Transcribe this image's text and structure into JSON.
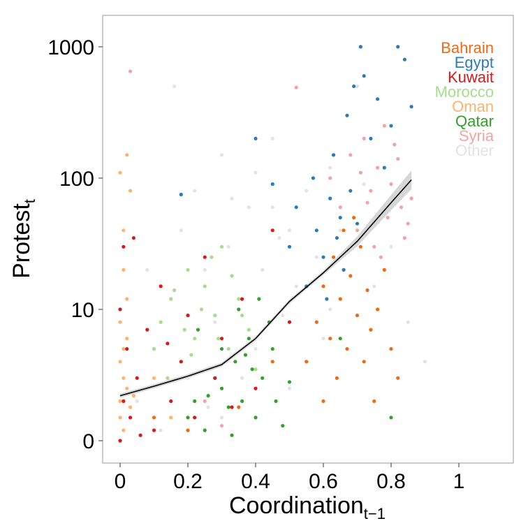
{
  "chart_data": {
    "type": "scatter",
    "xlabel": "Coordination",
    "xlabel_subscript": "t−1",
    "ylabel": "Protest",
    "ylabel_subscript": "t",
    "x_ticks": [
      0,
      0.2,
      0.4,
      0.6,
      0.8,
      1
    ],
    "x_tick_labels": [
      "0",
      "0.2",
      "0.4",
      "0.6",
      "0.8",
      "1"
    ],
    "xlim": [
      -0.05,
      1.15
    ],
    "y_scale": "log",
    "y_ticks": [
      1,
      10,
      100,
      1000
    ],
    "y_tick_labels": [
      "0",
      "10",
      "100",
      "1000"
    ],
    "ylim": [
      0.55,
      1700
    ],
    "grid": false,
    "legend_placement": "top-right",
    "series": [
      {
        "name": "Other",
        "color": "#e3e3e3",
        "points": [
          [
            0.05,
            2
          ],
          [
            0.1,
            5
          ],
          [
            0.15,
            12
          ],
          [
            0.18,
            40
          ],
          [
            0.2,
            3
          ],
          [
            0.22,
            80
          ],
          [
            0.25,
            20
          ],
          [
            0.28,
            8
          ],
          [
            0.3,
            150
          ],
          [
            0.32,
            30
          ],
          [
            0.35,
            12
          ],
          [
            0.38,
            60
          ],
          [
            0.4,
            5
          ],
          [
            0.42,
            20
          ],
          [
            0.45,
            200
          ],
          [
            0.48,
            9
          ],
          [
            0.5,
            40
          ],
          [
            0.52,
            15
          ],
          [
            0.55,
            80
          ],
          [
            0.58,
            25
          ],
          [
            0.6,
            6
          ],
          [
            0.62,
            120
          ],
          [
            0.65,
            40
          ],
          [
            0.7,
            500
          ],
          [
            0.72,
            90
          ],
          [
            0.75,
            15
          ],
          [
            0.8,
            30
          ],
          [
            0.85,
            8
          ],
          [
            0.9,
            4
          ],
          [
            0.12,
            1.2
          ],
          [
            0.3,
            1.5
          ],
          [
            0.5,
            2.5
          ],
          [
            0.45,
            60
          ],
          [
            0.36,
            3
          ],
          [
            0.26,
            1.8
          ],
          [
            0.55,
            4
          ],
          [
            0.62,
            10
          ],
          [
            0.4,
            110
          ],
          [
            0.33,
            70
          ],
          [
            0.47,
            35
          ],
          [
            0.16,
            500
          ],
          [
            0.08,
            20
          ]
        ]
      },
      {
        "name": "Syria",
        "color": "#f4a3a5",
        "points": [
          [
            0.62,
            100
          ],
          [
            0.65,
            60
          ],
          [
            0.68,
            150
          ],
          [
            0.7,
            40
          ],
          [
            0.72,
            200
          ],
          [
            0.74,
            80
          ],
          [
            0.75,
            30
          ],
          [
            0.76,
            120
          ],
          [
            0.78,
            250
          ],
          [
            0.79,
            50
          ],
          [
            0.8,
            90
          ],
          [
            0.82,
            140
          ],
          [
            0.83,
            60
          ],
          [
            0.84,
            35
          ],
          [
            0.85,
            45
          ],
          [
            0.77,
            25
          ],
          [
            0.73,
            65
          ],
          [
            0.81,
            180
          ],
          [
            0.71,
            110
          ],
          [
            0.66,
            20
          ],
          [
            0.86,
            70
          ],
          [
            0.52,
            490
          ],
          [
            0.03,
            650
          ],
          [
            0.3,
            1.3
          ],
          [
            0.25,
            2
          ]
        ]
      },
      {
        "name": "Qatar",
        "color": "#33a02c",
        "points": [
          [
            0.2,
            1.5
          ],
          [
            0.22,
            2
          ],
          [
            0.25,
            1.2
          ],
          [
            0.28,
            3
          ],
          [
            0.3,
            2.5
          ],
          [
            0.32,
            1.8
          ],
          [
            0.34,
            4
          ],
          [
            0.36,
            2
          ],
          [
            0.38,
            6
          ],
          [
            0.4,
            1.5
          ],
          [
            0.42,
            3
          ],
          [
            0.44,
            8
          ],
          [
            0.46,
            2
          ],
          [
            0.48,
            1.3
          ],
          [
            0.35,
            10
          ],
          [
            0.3,
            5
          ],
          [
            0.26,
            2.2
          ],
          [
            0.33,
            1.1
          ],
          [
            0.39,
            3.5
          ],
          [
            0.41,
            12
          ],
          [
            0.37,
            4.5
          ],
          [
            0.45,
            5
          ],
          [
            0.23,
            7
          ],
          [
            0.5,
            2.8
          ],
          [
            0.8,
            1.5
          ],
          [
            0.65,
            6
          ]
        ]
      },
      {
        "name": "Oman",
        "color": "#fdb46e",
        "points": [
          [
            0,
            1
          ],
          [
            0,
            2
          ],
          [
            0.01,
            3
          ],
          [
            0.01,
            5
          ],
          [
            0,
            8
          ],
          [
            0.02,
            12
          ],
          [
            0.01,
            20
          ],
          [
            0,
            1.5
          ],
          [
            0.02,
            2.5
          ],
          [
            0.01,
            40
          ],
          [
            0,
            110
          ],
          [
            0.02,
            150
          ],
          [
            0.03,
            80
          ],
          [
            0.01,
            1.2
          ],
          [
            0,
            4
          ],
          [
            0.02,
            6
          ],
          [
            0.03,
            1.8
          ],
          [
            0.04,
            2.2
          ],
          [
            0.1,
            3
          ],
          [
            0.15,
            1.5
          ]
        ]
      },
      {
        "name": "Morocco",
        "color": "#a6dc8d",
        "points": [
          [
            0.1,
            5
          ],
          [
            0.12,
            8
          ],
          [
            0.15,
            12
          ],
          [
            0.18,
            4
          ],
          [
            0.2,
            20
          ],
          [
            0.22,
            6
          ],
          [
            0.25,
            15
          ],
          [
            0.28,
            9
          ],
          [
            0.3,
            30
          ],
          [
            0.32,
            5
          ],
          [
            0.35,
            12
          ],
          [
            0.38,
            7
          ],
          [
            0.14,
            3
          ],
          [
            0.24,
            10
          ],
          [
            0.27,
            25
          ],
          [
            0.19,
            7
          ],
          [
            0.33,
            18
          ],
          [
            0.16,
            14
          ],
          [
            0.21,
            4.5
          ],
          [
            0.29,
            6
          ],
          [
            0.36,
            9
          ],
          [
            0.4,
            3.5
          ]
        ]
      },
      {
        "name": "Kuwait",
        "color": "#d7191c",
        "points": [
          [
            0,
            1
          ],
          [
            0.01,
            2
          ],
          [
            0.02,
            5
          ],
          [
            0,
            10
          ],
          [
            0.01,
            30
          ],
          [
            0.03,
            1.5
          ],
          [
            0.05,
            3
          ],
          [
            0.08,
            7
          ],
          [
            0.1,
            1.2
          ],
          [
            0.12,
            15
          ],
          [
            0.15,
            2
          ],
          [
            0.18,
            4
          ],
          [
            0.2,
            9
          ],
          [
            0.22,
            1.5
          ],
          [
            0.25,
            25
          ],
          [
            0.28,
            3
          ],
          [
            0.3,
            6
          ],
          [
            0.33,
            1.8
          ],
          [
            0.36,
            12
          ],
          [
            0.4,
            2.5
          ],
          [
            0.45,
            40
          ],
          [
            0.5,
            8
          ],
          [
            0.04,
            35
          ],
          [
            0.06,
            1.1
          ],
          [
            0.14,
            5.5
          ]
        ]
      },
      {
        "name": "Egypt",
        "color": "#2b7bba",
        "points": [
          [
            0.5,
            30
          ],
          [
            0.52,
            60
          ],
          [
            0.55,
            15
          ],
          [
            0.57,
            100
          ],
          [
            0.58,
            40
          ],
          [
            0.6,
            25
          ],
          [
            0.62,
            70
          ],
          [
            0.63,
            150
          ],
          [
            0.64,
            35
          ],
          [
            0.65,
            50
          ],
          [
            0.66,
            20
          ],
          [
            0.67,
            300
          ],
          [
            0.68,
            80
          ],
          [
            0.7,
            45
          ],
          [
            0.71,
            1000
          ],
          [
            0.72,
            600
          ],
          [
            0.74,
            200
          ],
          [
            0.76,
            400
          ],
          [
            0.78,
            120
          ],
          [
            0.8,
            250
          ],
          [
            0.82,
            1000
          ],
          [
            0.84,
            800
          ],
          [
            0.86,
            350
          ],
          [
            0.45,
            90
          ],
          [
            0.4,
            200
          ],
          [
            0.61,
            12
          ],
          [
            0.69,
            500
          ],
          [
            0.18,
            75
          ]
        ]
      },
      {
        "name": "Bahrain",
        "color": "#f16913",
        "points": [
          [
            0.55,
            4
          ],
          [
            0.58,
            8
          ],
          [
            0.6,
            15
          ],
          [
            0.62,
            6
          ],
          [
            0.63,
            25
          ],
          [
            0.64,
            3
          ],
          [
            0.65,
            12
          ],
          [
            0.66,
            40
          ],
          [
            0.67,
            5
          ],
          [
            0.68,
            18
          ],
          [
            0.7,
            9
          ],
          [
            0.71,
            30
          ],
          [
            0.72,
            4
          ],
          [
            0.73,
            14
          ],
          [
            0.74,
            7
          ],
          [
            0.75,
            2
          ],
          [
            0.76,
            10
          ],
          [
            0.78,
            20
          ],
          [
            0.8,
            5
          ],
          [
            0.82,
            3
          ],
          [
            0.6,
            2
          ],
          [
            0.69,
            50
          ],
          [
            0.1,
            1.5
          ],
          [
            0.2,
            1.2
          ],
          [
            0.35,
            1.8
          ],
          [
            0.45,
            4
          ]
        ]
      }
    ],
    "trend_line": {
      "color": "#000000",
      "points": [
        [
          0,
          2.2
        ],
        [
          0.1,
          2.6
        ],
        [
          0.2,
          3.1
        ],
        [
          0.3,
          3.8
        ],
        [
          0.4,
          6
        ],
        [
          0.5,
          11.5
        ],
        [
          0.6,
          19
        ],
        [
          0.7,
          33
        ],
        [
          0.8,
          65
        ],
        [
          0.86,
          97
        ]
      ]
    },
    "legend": [
      {
        "label": "Bahrain",
        "color": "#f16913"
      },
      {
        "label": "Egypt",
        "color": "#2b7bba"
      },
      {
        "label": "Kuwait",
        "color": "#d7191c"
      },
      {
        "label": "Morocco",
        "color": "#a6dc8d"
      },
      {
        "label": "Oman",
        "color": "#fdb46e"
      },
      {
        "label": "Qatar",
        "color": "#33a02c"
      },
      {
        "label": "Syria",
        "color": "#f4a3a5"
      },
      {
        "label": "Other",
        "color": "#e3e3e3"
      }
    ]
  }
}
